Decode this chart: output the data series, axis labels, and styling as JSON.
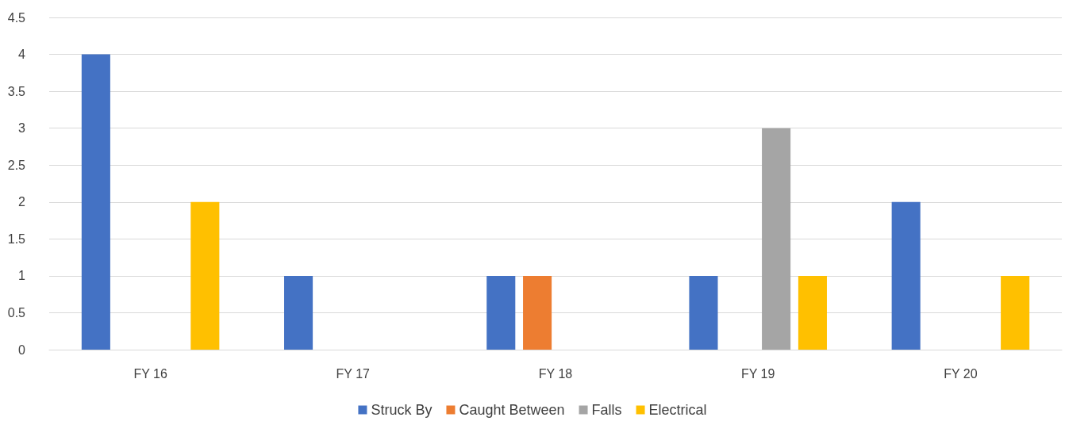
{
  "chart_data": {
    "type": "bar",
    "categories": [
      "FY 16",
      "FY 17",
      "FY 18",
      "FY 19",
      "FY 20"
    ],
    "series": [
      {
        "name": "Struck By",
        "color": "#4472c4",
        "values": [
          4,
          1,
          1,
          1,
          2
        ]
      },
      {
        "name": "Caught Between",
        "color": "#ed7d31",
        "values": [
          0,
          0,
          1,
          0,
          0
        ]
      },
      {
        "name": "Falls",
        "color": "#a5a5a5",
        "values": [
          0,
          0,
          0,
          3,
          0
        ]
      },
      {
        "name": "Electrical",
        "color": "#ffc000",
        "values": [
          2,
          0,
          0,
          1,
          1
        ]
      }
    ],
    "ylim": [
      0,
      4.5
    ],
    "yticks": [
      0,
      0.5,
      1,
      1.5,
      2,
      2.5,
      3,
      3.5,
      4,
      4.5
    ],
    "grid": "y",
    "legend": "bottom"
  }
}
